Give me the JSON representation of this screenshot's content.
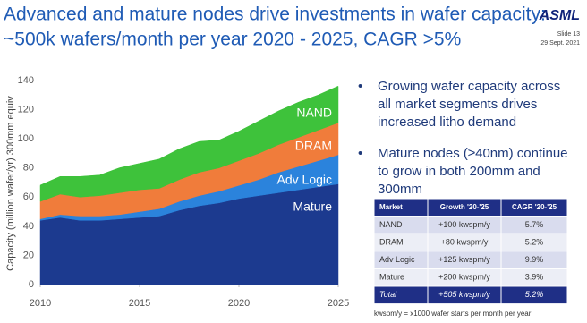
{
  "slide": {
    "title": [
      "Advanced and mature nodes drive investments in wafer capacity:",
      "~500k wafers/month per year 2020 - 2025, CAGR >5%"
    ],
    "logo": "ASML",
    "slide_number": "Slide 13",
    "date": "29 Sept. 2021",
    "bullets": [
      [
        "Growing wafer capacity across",
        "all market segments drives",
        "increased litho demand"
      ],
      [
        "Mature nodes (≥40nm) continue",
        "to grow in both 200mm and",
        "300mm"
      ]
    ],
    "table": {
      "header": [
        "Market",
        "Growth '20-'25",
        "CAGR '20-'25"
      ],
      "rows": [
        [
          "NAND",
          "+100 kwspm/y",
          "5.7%"
        ],
        [
          "DRAM",
          "+80 kwspm/y",
          "5.2%"
        ],
        [
          "Adv Logic",
          "+125 kwspm/y",
          "9.9%"
        ],
        [
          "Mature",
          "+200 kwspm/y",
          "3.9%"
        ],
        [
          "Total",
          "+505 kwspm/y",
          "5.2%"
        ]
      ]
    },
    "footnote": "kwspm/y = x1000 wafer starts per month per year"
  },
  "chart_data": {
    "type": "stacked_area",
    "y_label": "Capacity (million wafer/yr) 300mm equiv",
    "x": [
      2010,
      2011,
      2012,
      2013,
      2014,
      2015,
      2016,
      2017,
      2018,
      2019,
      2020,
      2021,
      2022,
      2023,
      2024,
      2025
    ],
    "xlim": [
      2010,
      2025
    ],
    "xticks": [
      2010,
      2015,
      2020,
      2025
    ],
    "ylim": [
      0,
      140
    ],
    "yticks": [
      0,
      20,
      40,
      60,
      80,
      100,
      120,
      140
    ],
    "grid": false,
    "series": [
      {
        "name": "Mature",
        "color": "#1c3a8f",
        "values": [
          44,
          46,
          44,
          44,
          45,
          46,
          47,
          51,
          54,
          56,
          59,
          61,
          63,
          65,
          67,
          69
        ]
      },
      {
        "name": "Adv Logic",
        "color": "#2b83dc",
        "values": [
          1,
          2,
          3,
          3,
          3,
          4,
          5,
          6,
          7,
          8,
          9,
          11,
          14,
          16,
          18,
          20
        ]
      },
      {
        "name": "DRAM",
        "color": "#f07c3b",
        "values": [
          12,
          14,
          13,
          14,
          15,
          15,
          14,
          15,
          16,
          16,
          17,
          18,
          19,
          20,
          21,
          22
        ]
      },
      {
        "name": "NAND",
        "color": "#3ec23b",
        "values": [
          11,
          12,
          14,
          14,
          17,
          18,
          20,
          21,
          21,
          19,
          20,
          22,
          23,
          24,
          24,
          25
        ]
      }
    ]
  }
}
